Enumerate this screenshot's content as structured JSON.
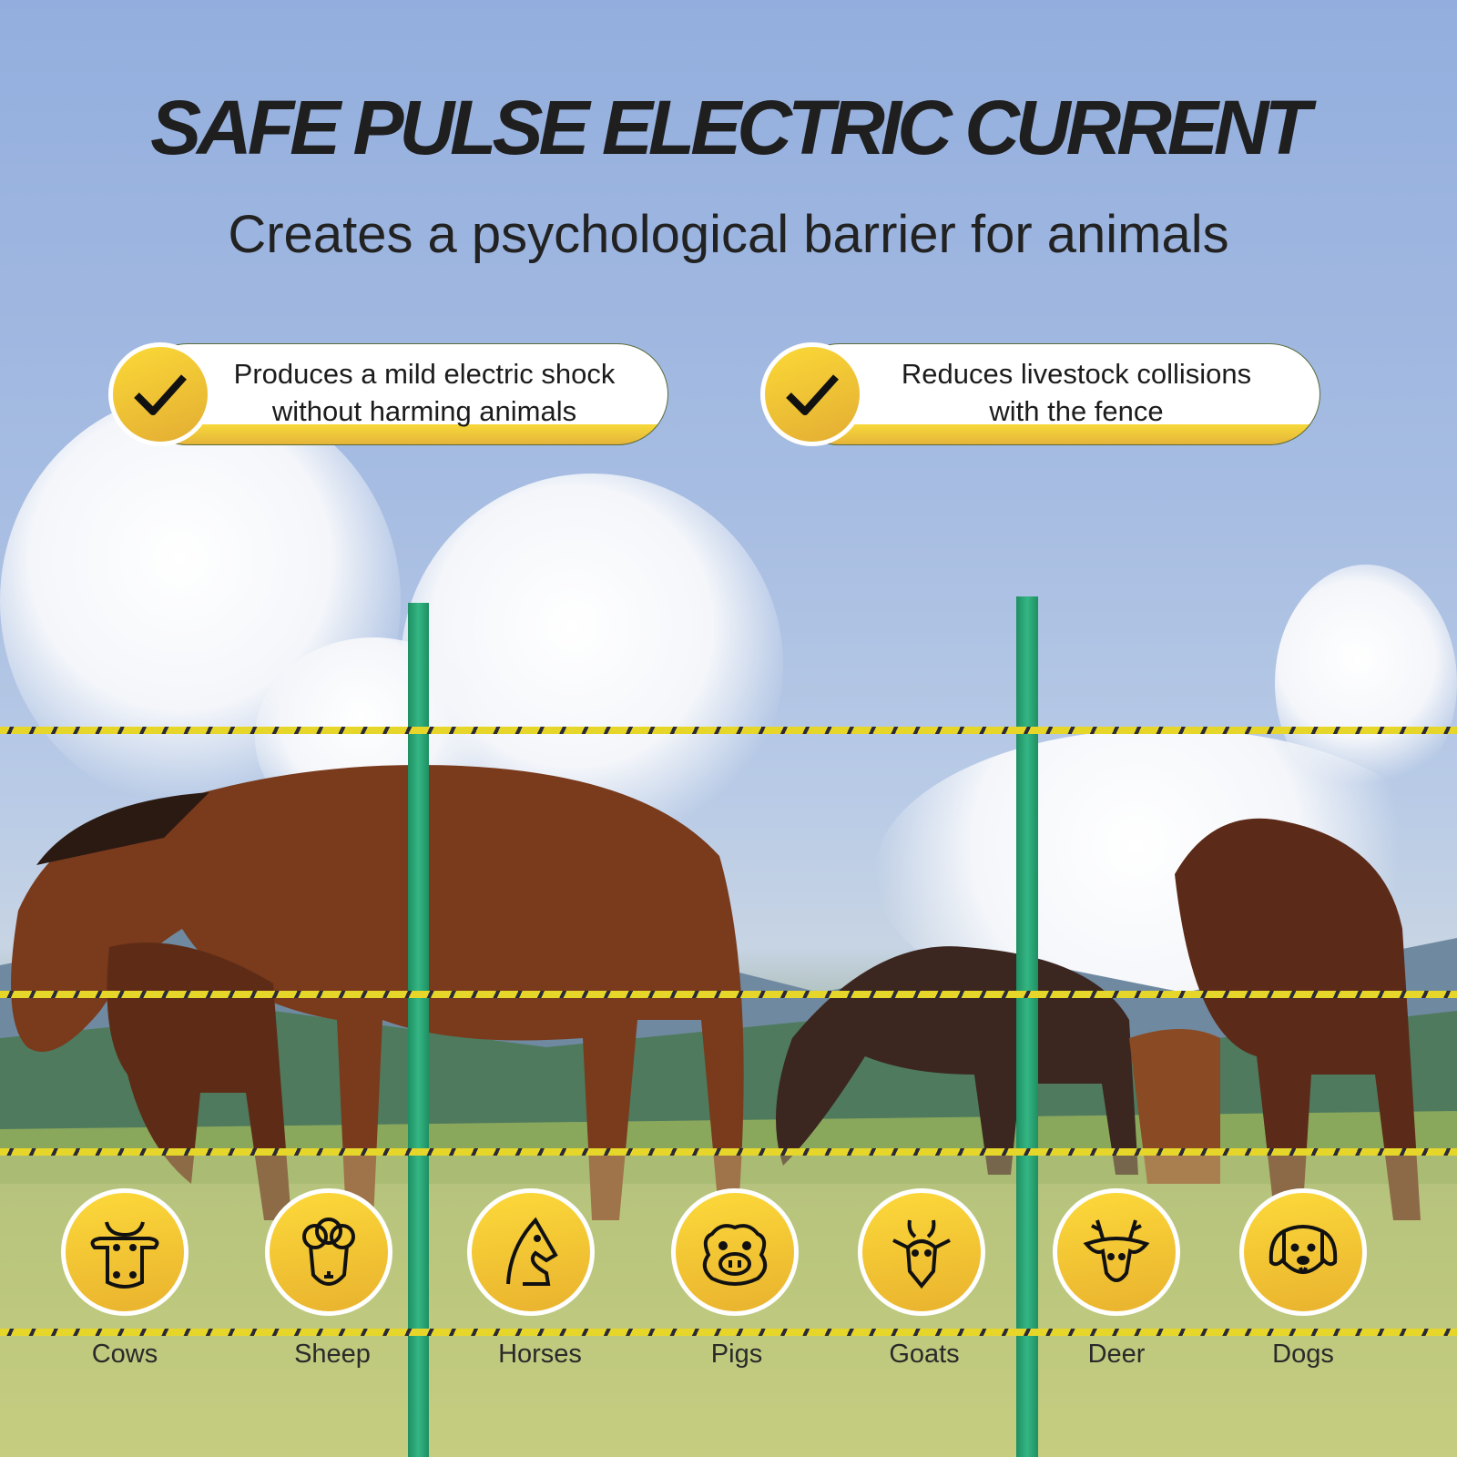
{
  "header": {
    "title": "SAFE PULSE ELECTRIC CURRENT",
    "subtitle": "Creates a psychological barrier for animals"
  },
  "features": [
    {
      "icon": "check-icon",
      "line1": "Produces a mild electric shock",
      "line2": "without harming animals"
    },
    {
      "icon": "check-icon",
      "line1": "Reduces livestock collisions",
      "line2": "with the fence"
    }
  ],
  "animals": [
    {
      "label": "Cows",
      "icon": "cow-icon"
    },
    {
      "label": "Sheep",
      "icon": "sheep-icon"
    },
    {
      "label": "Horses",
      "icon": "horse-icon"
    },
    {
      "label": "Pigs",
      "icon": "pig-icon"
    },
    {
      "label": "Goats",
      "icon": "goat-icon"
    },
    {
      "label": "Deer",
      "icon": "deer-icon"
    },
    {
      "label": "Dogs",
      "icon": "dog-icon"
    }
  ],
  "colors": {
    "accent_yellow": "#f5c835",
    "post_green": "#2aa574",
    "text": "#1f1f1f"
  }
}
